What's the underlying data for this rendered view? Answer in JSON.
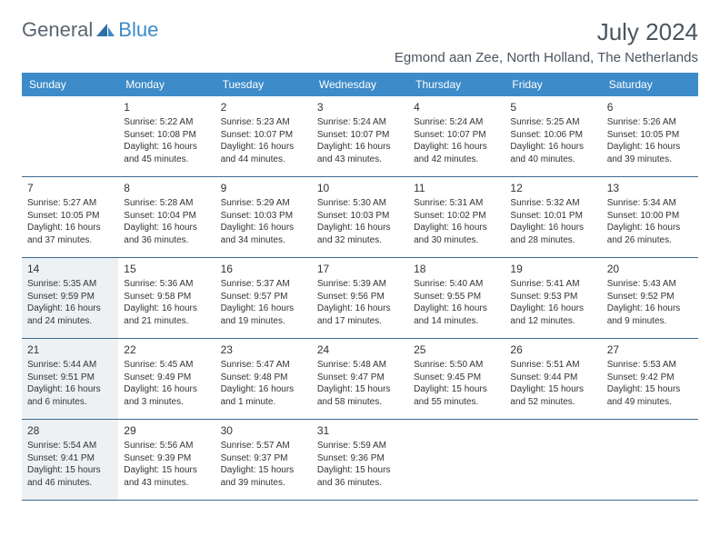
{
  "logo": {
    "text1": "General",
    "text2": "Blue"
  },
  "header": {
    "month_title": "July 2024",
    "location": "Egmond aan Zee, North Holland, The Netherlands"
  },
  "colors": {
    "header_bar": "#3d8bc8",
    "row_border": "#3d6a8f",
    "shaded_bg": "#eef1f3",
    "text": "#333333",
    "muted": "#4a5560"
  },
  "day_labels": [
    "Sunday",
    "Monday",
    "Tuesday",
    "Wednesday",
    "Thursday",
    "Friday",
    "Saturday"
  ],
  "weeks": [
    [
      {
        "empty": true
      },
      {
        "num": "1",
        "sunrise": "Sunrise: 5:22 AM",
        "sunset": "Sunset: 10:08 PM",
        "day1": "Daylight: 16 hours",
        "day2": "and 45 minutes."
      },
      {
        "num": "2",
        "sunrise": "Sunrise: 5:23 AM",
        "sunset": "Sunset: 10:07 PM",
        "day1": "Daylight: 16 hours",
        "day2": "and 44 minutes."
      },
      {
        "num": "3",
        "sunrise": "Sunrise: 5:24 AM",
        "sunset": "Sunset: 10:07 PM",
        "day1": "Daylight: 16 hours",
        "day2": "and 43 minutes."
      },
      {
        "num": "4",
        "sunrise": "Sunrise: 5:24 AM",
        "sunset": "Sunset: 10:07 PM",
        "day1": "Daylight: 16 hours",
        "day2": "and 42 minutes."
      },
      {
        "num": "5",
        "sunrise": "Sunrise: 5:25 AM",
        "sunset": "Sunset: 10:06 PM",
        "day1": "Daylight: 16 hours",
        "day2": "and 40 minutes."
      },
      {
        "num": "6",
        "sunrise": "Sunrise: 5:26 AM",
        "sunset": "Sunset: 10:05 PM",
        "day1": "Daylight: 16 hours",
        "day2": "and 39 minutes."
      }
    ],
    [
      {
        "num": "7",
        "sunrise": "Sunrise: 5:27 AM",
        "sunset": "Sunset: 10:05 PM",
        "day1": "Daylight: 16 hours",
        "day2": "and 37 minutes."
      },
      {
        "num": "8",
        "sunrise": "Sunrise: 5:28 AM",
        "sunset": "Sunset: 10:04 PM",
        "day1": "Daylight: 16 hours",
        "day2": "and 36 minutes."
      },
      {
        "num": "9",
        "sunrise": "Sunrise: 5:29 AM",
        "sunset": "Sunset: 10:03 PM",
        "day1": "Daylight: 16 hours",
        "day2": "and 34 minutes."
      },
      {
        "num": "10",
        "sunrise": "Sunrise: 5:30 AM",
        "sunset": "Sunset: 10:03 PM",
        "day1": "Daylight: 16 hours",
        "day2": "and 32 minutes."
      },
      {
        "num": "11",
        "sunrise": "Sunrise: 5:31 AM",
        "sunset": "Sunset: 10:02 PM",
        "day1": "Daylight: 16 hours",
        "day2": "and 30 minutes."
      },
      {
        "num": "12",
        "sunrise": "Sunrise: 5:32 AM",
        "sunset": "Sunset: 10:01 PM",
        "day1": "Daylight: 16 hours",
        "day2": "and 28 minutes."
      },
      {
        "num": "13",
        "sunrise": "Sunrise: 5:34 AM",
        "sunset": "Sunset: 10:00 PM",
        "day1": "Daylight: 16 hours",
        "day2": "and 26 minutes."
      }
    ],
    [
      {
        "num": "14",
        "shaded": true,
        "sunrise": "Sunrise: 5:35 AM",
        "sunset": "Sunset: 9:59 PM",
        "day1": "Daylight: 16 hours",
        "day2": "and 24 minutes."
      },
      {
        "num": "15",
        "sunrise": "Sunrise: 5:36 AM",
        "sunset": "Sunset: 9:58 PM",
        "day1": "Daylight: 16 hours",
        "day2": "and 21 minutes."
      },
      {
        "num": "16",
        "sunrise": "Sunrise: 5:37 AM",
        "sunset": "Sunset: 9:57 PM",
        "day1": "Daylight: 16 hours",
        "day2": "and 19 minutes."
      },
      {
        "num": "17",
        "sunrise": "Sunrise: 5:39 AM",
        "sunset": "Sunset: 9:56 PM",
        "day1": "Daylight: 16 hours",
        "day2": "and 17 minutes."
      },
      {
        "num": "18",
        "sunrise": "Sunrise: 5:40 AM",
        "sunset": "Sunset: 9:55 PM",
        "day1": "Daylight: 16 hours",
        "day2": "and 14 minutes."
      },
      {
        "num": "19",
        "sunrise": "Sunrise: 5:41 AM",
        "sunset": "Sunset: 9:53 PM",
        "day1": "Daylight: 16 hours",
        "day2": "and 12 minutes."
      },
      {
        "num": "20",
        "sunrise": "Sunrise: 5:43 AM",
        "sunset": "Sunset: 9:52 PM",
        "day1": "Daylight: 16 hours",
        "day2": "and 9 minutes."
      }
    ],
    [
      {
        "num": "21",
        "shaded": true,
        "sunrise": "Sunrise: 5:44 AM",
        "sunset": "Sunset: 9:51 PM",
        "day1": "Daylight: 16 hours",
        "day2": "and 6 minutes."
      },
      {
        "num": "22",
        "sunrise": "Sunrise: 5:45 AM",
        "sunset": "Sunset: 9:49 PM",
        "day1": "Daylight: 16 hours",
        "day2": "and 3 minutes."
      },
      {
        "num": "23",
        "sunrise": "Sunrise: 5:47 AM",
        "sunset": "Sunset: 9:48 PM",
        "day1": "Daylight: 16 hours",
        "day2": "and 1 minute."
      },
      {
        "num": "24",
        "sunrise": "Sunrise: 5:48 AM",
        "sunset": "Sunset: 9:47 PM",
        "day1": "Daylight: 15 hours",
        "day2": "and 58 minutes."
      },
      {
        "num": "25",
        "sunrise": "Sunrise: 5:50 AM",
        "sunset": "Sunset: 9:45 PM",
        "day1": "Daylight: 15 hours",
        "day2": "and 55 minutes."
      },
      {
        "num": "26",
        "sunrise": "Sunrise: 5:51 AM",
        "sunset": "Sunset: 9:44 PM",
        "day1": "Daylight: 15 hours",
        "day2": "and 52 minutes."
      },
      {
        "num": "27",
        "sunrise": "Sunrise: 5:53 AM",
        "sunset": "Sunset: 9:42 PM",
        "day1": "Daylight: 15 hours",
        "day2": "and 49 minutes."
      }
    ],
    [
      {
        "num": "28",
        "shaded": true,
        "sunrise": "Sunrise: 5:54 AM",
        "sunset": "Sunset: 9:41 PM",
        "day1": "Daylight: 15 hours",
        "day2": "and 46 minutes."
      },
      {
        "num": "29",
        "sunrise": "Sunrise: 5:56 AM",
        "sunset": "Sunset: 9:39 PM",
        "day1": "Daylight: 15 hours",
        "day2": "and 43 minutes."
      },
      {
        "num": "30",
        "sunrise": "Sunrise: 5:57 AM",
        "sunset": "Sunset: 9:37 PM",
        "day1": "Daylight: 15 hours",
        "day2": "and 39 minutes."
      },
      {
        "num": "31",
        "sunrise": "Sunrise: 5:59 AM",
        "sunset": "Sunset: 9:36 PM",
        "day1": "Daylight: 15 hours",
        "day2": "and 36 minutes."
      },
      {
        "empty": true
      },
      {
        "empty": true
      },
      {
        "empty": true
      }
    ]
  ]
}
